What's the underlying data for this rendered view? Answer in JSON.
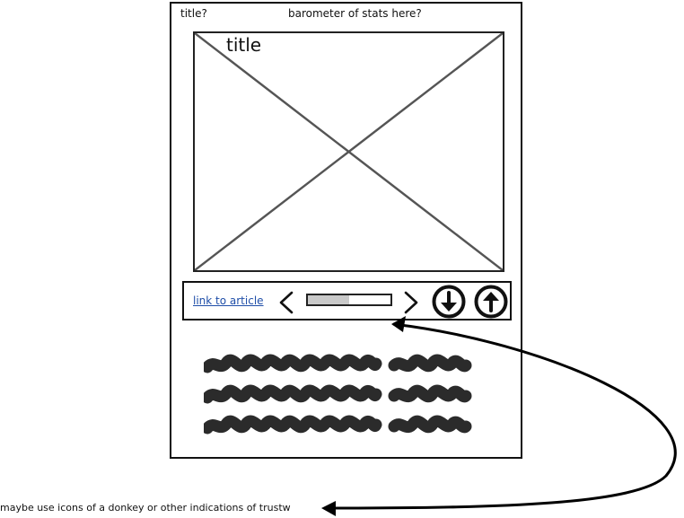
{
  "header": {
    "title_placeholder": "title?",
    "stats_placeholder": "barometer of stats here?"
  },
  "image": {
    "title": "title"
  },
  "controls": {
    "article_link": "link to article",
    "progress_fraction": 0.5,
    "icons": [
      "chevron-left-icon",
      "chevron-right-icon",
      "down-arrow-circle-icon",
      "up-arrow-circle-icon"
    ]
  },
  "annotation": {
    "note": "maybe use icons of a donkey or other indications of trustw"
  }
}
